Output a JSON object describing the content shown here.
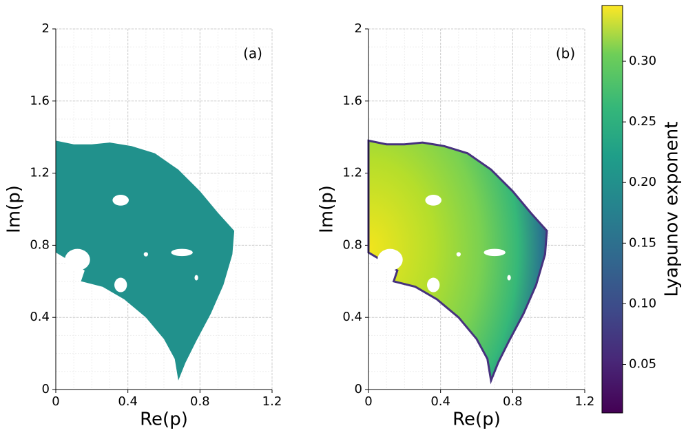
{
  "chart_data": [
    {
      "type": "region",
      "annotation": "(a)",
      "x_label": "Re(p)",
      "y_label": "Im(p)",
      "xlim": [
        0,
        1.2
      ],
      "xticks": [
        0,
        0.4,
        0.8,
        1.2
      ],
      "ylim": [
        0,
        2
      ],
      "yticks": [
        0,
        0.4,
        0.8,
        1.2,
        1.6,
        2
      ],
      "grid": true,
      "color": "#21918c"
    },
    {
      "type": "region",
      "annotation": "(b)",
      "x_label": "Re(p)",
      "y_label": "Im(p)",
      "xlim": [
        0,
        1.2
      ],
      "xticks": [
        0,
        0.4,
        0.8,
        1.2
      ],
      "ylim": [
        0,
        2
      ],
      "yticks": [
        0,
        0.4,
        0.8,
        1.2,
        1.6,
        2
      ],
      "grid": true,
      "colormap": "viridis"
    }
  ],
  "colorbar": {
    "label": "Lyapunov exponent",
    "lim": [
      0.01,
      0.346
    ],
    "ticks": [
      0.05,
      {
        "value": 0.1,
        "label": "0.10"
      },
      0.15,
      {
        "value": 0.2,
        "label": "0.20"
      },
      0.25,
      {
        "value": 0.3,
        "label": "0.30"
      }
    ],
    "colormap": "viridis"
  }
}
